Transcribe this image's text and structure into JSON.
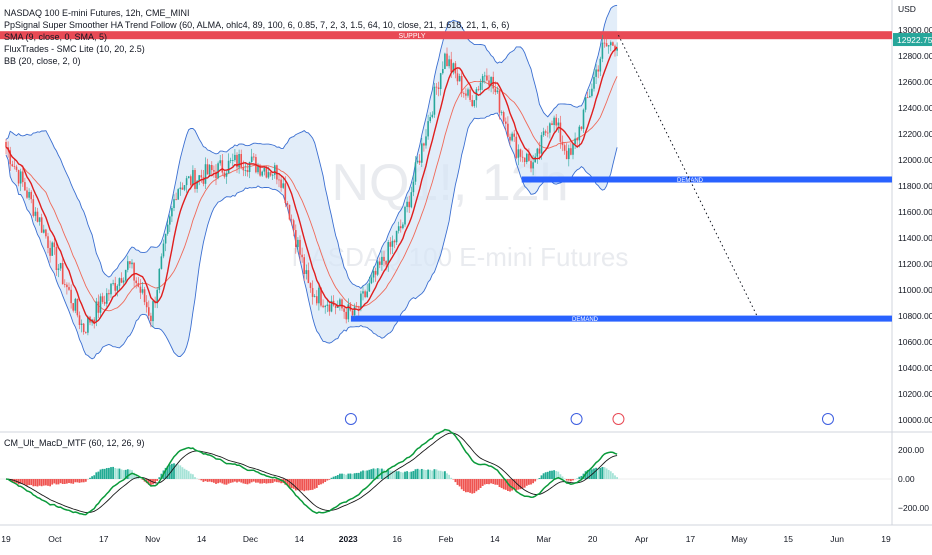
{
  "header": {
    "symbol_line": "NASDAQ 100 E-mini Futures, 12h, CME_MINI",
    "indicators": [
      "PpSignal Super Smoother HA Trend Follow (60, ALMA, ohlc4, 89, 100, 6, 0.85, 7, 2, 3, 1.5, 64, 10, close, 21, 1.618, 21, 1, 6, 6)",
      "SMA (9, close, 0, SMA, 5)",
      "FluxTrades - SMC Lite  (10, 20, 2.5)",
      "BB (20, close, 2, 0)"
    ]
  },
  "watermark": {
    "line1": "NQ1!, 12h",
    "line2": "NASDAQ 100 E-mini Futures"
  },
  "price_axis": {
    "currency": "USD",
    "ticks": [
      "13000.00",
      "12800.00",
      "12600.00",
      "12400.00",
      "12200.00",
      "12000.00",
      "11800.00",
      "11600.00",
      "11400.00",
      "11200.00",
      "11000.00",
      "10800.00",
      "10600.00",
      "10400.00",
      "10200.00",
      "10000.00"
    ],
    "last_price": "12922.75"
  },
  "zones": {
    "supply": {
      "label": "SUPPLY",
      "value": 12960,
      "color": "#e84a55"
    },
    "demand_upper": {
      "label": "DEMAND",
      "value": 11850,
      "color": "#2962ff"
    },
    "demand_lower": {
      "label": "DEMAND",
      "value": 10780,
      "color": "#2962ff"
    }
  },
  "time_axis": {
    "labels": [
      "19",
      "Oct",
      "17",
      "Nov",
      "14",
      "Dec",
      "14",
      "2023",
      "16",
      "Feb",
      "14",
      "Mar",
      "20",
      "Apr",
      "17",
      "May",
      "15",
      "Jun",
      "19"
    ]
  },
  "macd": {
    "title": "CM_Ult_MacD_MTF (60, 12, 26, 9)",
    "ticks": [
      "200.00",
      "0.00",
      "−200.00"
    ]
  },
  "colors": {
    "up": "#26a69a",
    "down": "#ef5350",
    "bb": "#3b6fd1",
    "bb_fill": "#d6e6f7",
    "sma": "#e01e1e",
    "slow": "#ef6a5a",
    "macd_line": "#0a9a3a",
    "signal_line": "#1a1a1a"
  },
  "chart_data": {
    "type": "candlestick",
    "title": "NASDAQ 100 E-mini Futures, 12h, CME_MINI",
    "y_range": [
      9950,
      13180
    ],
    "approx_close_path": [
      {
        "date": "2022-09-19",
        "close": 12100
      },
      {
        "date": "2022-09-30",
        "close": 11500
      },
      {
        "date": "2022-10-13",
        "close": 10700
      },
      {
        "date": "2022-10-27",
        "close": 11200
      },
      {
        "date": "2022-11-03",
        "close": 10800
      },
      {
        "date": "2022-11-11",
        "close": 11800
      },
      {
        "date": "2022-12-01",
        "close": 12000
      },
      {
        "date": "2022-12-13",
        "close": 11900
      },
      {
        "date": "2022-12-22",
        "close": 11000
      },
      {
        "date": "2023-01-05",
        "close": 10800
      },
      {
        "date": "2023-01-20",
        "close": 11500
      },
      {
        "date": "2023-02-02",
        "close": 12800
      },
      {
        "date": "2023-02-10",
        "close": 12450
      },
      {
        "date": "2023-02-15",
        "close": 12700
      },
      {
        "date": "2023-02-24",
        "close": 12100
      },
      {
        "date": "2023-03-02",
        "close": 11950
      },
      {
        "date": "2023-03-07",
        "close": 12350
      },
      {
        "date": "2023-03-13",
        "close": 12000
      },
      {
        "date": "2023-03-23",
        "close": 12850
      },
      {
        "date": "2023-03-28",
        "close": 12922.75
      }
    ],
    "projection": {
      "from": {
        "date": "2023-03-28",
        "value": 12960
      },
      "to": {
        "date": "2023-05-10",
        "value": 10800
      }
    }
  }
}
